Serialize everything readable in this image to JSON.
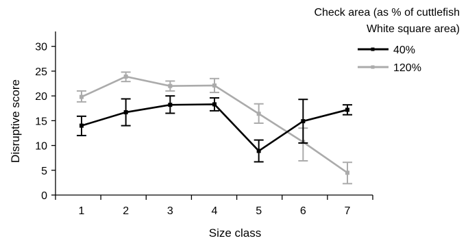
{
  "chart_data": {
    "type": "line",
    "title": "",
    "xlabel": "Size class",
    "ylabel": "Disruptive score",
    "categories": [
      "1",
      "2",
      "3",
      "4",
      "5",
      "6",
      "7"
    ],
    "ylim": [
      0,
      33
    ],
    "yticks": [
      "0",
      "5",
      "10",
      "15",
      "20",
      "25",
      "30"
    ],
    "grid": false,
    "legend": {
      "title_line1": "Check area (as % of cuttlefish",
      "title_line2": "White square area)",
      "placement": "top-right"
    },
    "series": [
      {
        "name": "40%",
        "color": "#000000",
        "values": [
          14.0,
          16.7,
          18.2,
          18.3,
          8.9,
          14.9,
          17.2
        ],
        "err_upper": [
          15.9,
          19.4,
          20.0,
          19.6,
          11.1,
          19.3,
          18.2
        ],
        "err_lower": [
          12.0,
          14.0,
          16.5,
          17.0,
          6.7,
          10.5,
          16.2
        ]
      },
      {
        "name": "120%",
        "color": "#ababab",
        "values": [
          19.8,
          23.9,
          22.0,
          22.1,
          16.4,
          10.7,
          4.5
        ],
        "err_upper": [
          21.0,
          24.8,
          23.0,
          23.5,
          18.4,
          13.5,
          6.6
        ],
        "err_lower": [
          18.8,
          22.9,
          21.0,
          20.7,
          14.5,
          6.9,
          2.3
        ]
      }
    ]
  }
}
